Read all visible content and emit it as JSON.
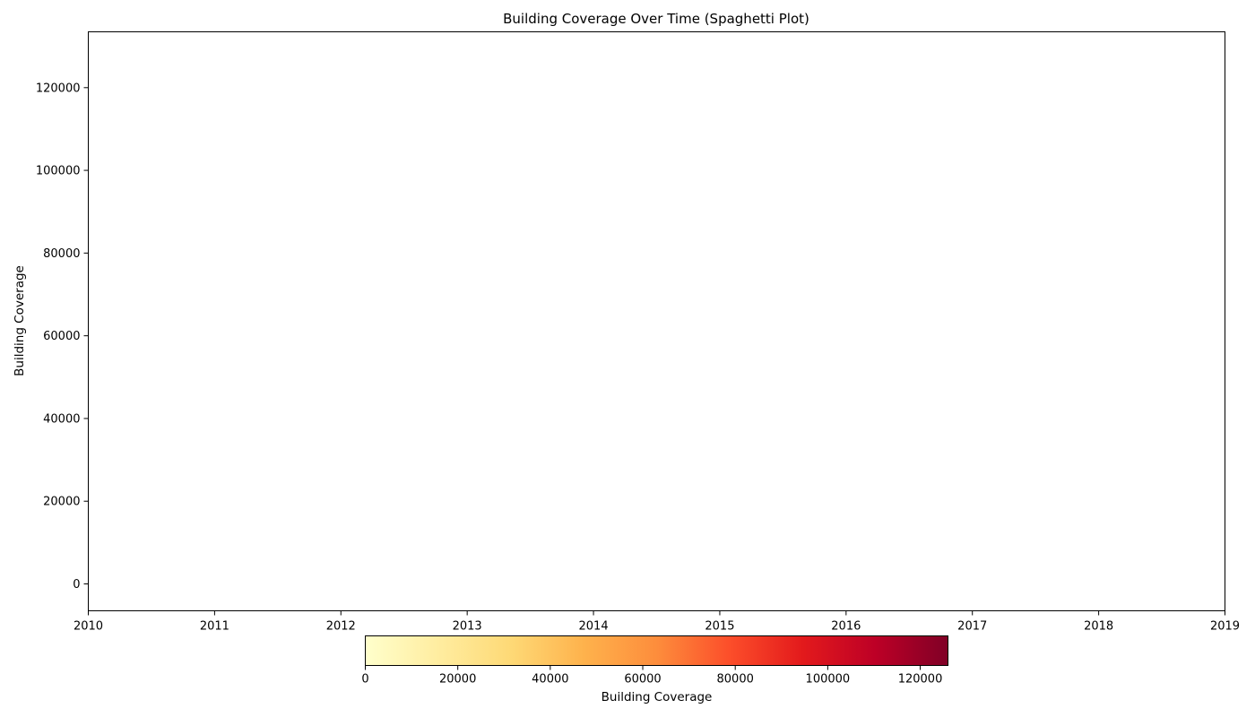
{
  "chart_data": {
    "type": "line",
    "title": "Building Coverage Over Time (Spaghetti Plot)",
    "xlabel": "",
    "ylabel": "Building Coverage",
    "xlim": [
      2010,
      2019
    ],
    "ylim": [
      -6500,
      133500
    ],
    "x_ticks": [
      "2010",
      "2011",
      "2012",
      "2013",
      "2014",
      "2015",
      "2016",
      "2017",
      "2018",
      "2019"
    ],
    "y_ticks": [
      0,
      20000,
      40000,
      60000,
      80000,
      100000,
      120000
    ],
    "y_tick_labels": [
      "0",
      "20000",
      "40000",
      "60000",
      "80000",
      "100000",
      "120000"
    ],
    "series": [],
    "grid": false,
    "colorbar": {
      "label": "Building Coverage",
      "orientation": "horizontal",
      "range": [
        0,
        126000
      ],
      "ticks": [
        0,
        20000,
        40000,
        60000,
        80000,
        100000,
        120000
      ],
      "tick_labels": [
        "0",
        "20000",
        "40000",
        "60000",
        "80000",
        "100000",
        "120000"
      ],
      "colormap": "YlOrRd",
      "colors": [
        "#ffffcc",
        "#ffeda0",
        "#fed976",
        "#feb24c",
        "#fd8d3c",
        "#fc4e2a",
        "#e31a1c",
        "#bd0026",
        "#800026"
      ]
    }
  }
}
